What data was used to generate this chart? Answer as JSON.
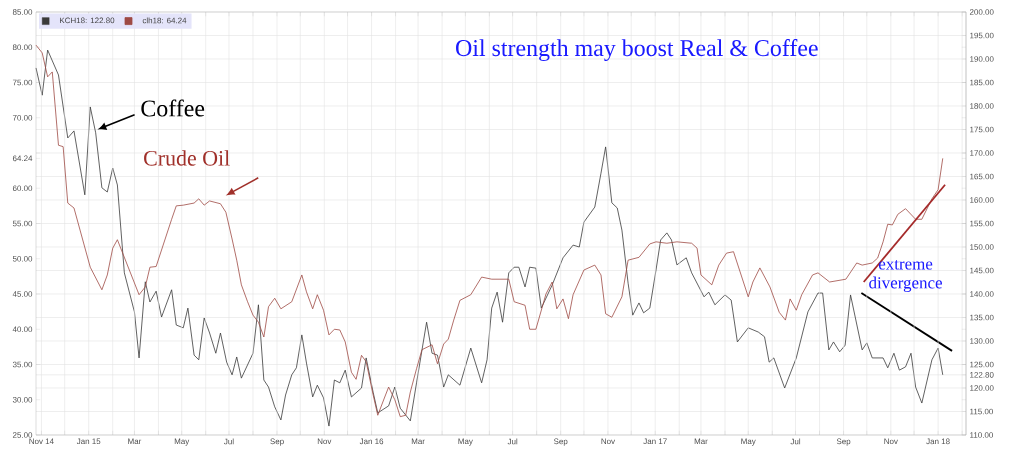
{
  "chart_data": {
    "type": "line",
    "title": "Oil strength may boost Real & Coffee",
    "annotations": [
      "Coffee",
      "Crude Oil",
      "extreme divergence"
    ],
    "xlim": [
      "2014-10-25",
      "2018-02-06"
    ],
    "xticks": [
      {
        "value": "2014-11-01",
        "label": "Nov 14"
      },
      {
        "value": "2014-12-01",
        "label": null
      },
      {
        "value": "2015-01-01",
        "label": "Jan 15"
      },
      {
        "value": "2015-02-01",
        "label": null
      },
      {
        "value": "2015-03-01",
        "label": "Mar"
      },
      {
        "value": "2015-04-01",
        "label": null
      },
      {
        "value": "2015-05-01",
        "label": "May"
      },
      {
        "value": "2015-06-01",
        "label": null
      },
      {
        "value": "2015-07-01",
        "label": "Jul"
      },
      {
        "value": "2015-08-01",
        "label": null
      },
      {
        "value": "2015-09-01",
        "label": "Sep"
      },
      {
        "value": "2015-10-01",
        "label": null
      },
      {
        "value": "2015-11-01",
        "label": "Nov"
      },
      {
        "value": "2015-12-01",
        "label": null
      },
      {
        "value": "2016-01-01",
        "label": "Jan 16"
      },
      {
        "value": "2016-02-01",
        "label": null
      },
      {
        "value": "2016-03-01",
        "label": "Mar"
      },
      {
        "value": "2016-04-01",
        "label": null
      },
      {
        "value": "2016-05-01",
        "label": "May"
      },
      {
        "value": "2016-06-01",
        "label": null
      },
      {
        "value": "2016-07-01",
        "label": "Jul"
      },
      {
        "value": "2016-08-01",
        "label": null
      },
      {
        "value": "2016-09-01",
        "label": "Sep"
      },
      {
        "value": "2016-10-01",
        "label": null
      },
      {
        "value": "2016-11-01",
        "label": "Nov"
      },
      {
        "value": "2016-12-01",
        "label": null
      },
      {
        "value": "2017-01-01",
        "label": "Jan 17"
      },
      {
        "value": "2017-02-01",
        "label": null
      },
      {
        "value": "2017-03-01",
        "label": "Mar"
      },
      {
        "value": "2017-04-01",
        "label": null
      },
      {
        "value": "2017-05-01",
        "label": "May"
      },
      {
        "value": "2017-06-01",
        "label": null
      },
      {
        "value": "2017-07-01",
        "label": "Jul"
      },
      {
        "value": "2017-08-01",
        "label": null
      },
      {
        "value": "2017-09-01",
        "label": "Sep"
      },
      {
        "value": "2017-10-01",
        "label": null
      },
      {
        "value": "2017-11-01",
        "label": "Nov"
      },
      {
        "value": "2017-12-01",
        "label": null
      },
      {
        "value": "2018-01-01",
        "label": "Jan 18"
      },
      {
        "value": "2018-02-01",
        "label": null
      }
    ],
    "ylim": [
      25,
      85
    ],
    "yticks": [
      {
        "value": 25,
        "label": "25.00"
      },
      {
        "value": 30,
        "label": "30.00"
      },
      {
        "value": 35,
        "label": "35.00"
      },
      {
        "value": 40,
        "label": "40.00"
      },
      {
        "value": 45,
        "label": "45.00"
      },
      {
        "value": 50,
        "label": "50.00"
      },
      {
        "value": 55,
        "label": "55.00"
      },
      {
        "value": 60,
        "label": "60.00"
      },
      {
        "value": 64.24,
        "label": "64.24"
      },
      {
        "value": 65,
        "label": null
      },
      {
        "value": 70,
        "label": "70.00"
      },
      {
        "value": 75,
        "label": "75.00"
      },
      {
        "value": 80,
        "label": "80.00"
      },
      {
        "value": 85,
        "label": "85.00"
      }
    ],
    "y2lim": [
      110,
      200
    ],
    "y2ticks": [
      {
        "value": 110,
        "label": "110.00"
      },
      {
        "value": 115,
        "label": "115.00"
      },
      {
        "value": 120,
        "label": "120.00"
      },
      {
        "value": 122.8,
        "label": "122.80"
      },
      {
        "value": 125,
        "label": "125.00"
      },
      {
        "value": 130,
        "label": "130.00"
      },
      {
        "value": 135,
        "label": "135.00"
      },
      {
        "value": 140,
        "label": "140.00"
      },
      {
        "value": 145,
        "label": "145.00"
      },
      {
        "value": 150,
        "label": "150.00"
      },
      {
        "value": 155,
        "label": "155.00"
      },
      {
        "value": 160,
        "label": "160.00"
      },
      {
        "value": 165,
        "label": "165.00"
      },
      {
        "value": 170,
        "label": "170.00"
      },
      {
        "value": 175,
        "label": "175.00"
      },
      {
        "value": 180,
        "label": "180.00"
      },
      {
        "value": 185,
        "label": "185.00"
      },
      {
        "value": 190,
        "label": "190.00"
      },
      {
        "value": 195,
        "label": "195.00"
      },
      {
        "value": 200,
        "label": "200.00"
      }
    ],
    "grid": true,
    "legend": "top left",
    "marker": "none",
    "series": [
      {
        "name": "KCH18: 122.80",
        "color": "#3a3a3a",
        "axis": "y2",
        "x": [
          "2014-10-25",
          "2014-11-02",
          "2014-11-09",
          "2014-11-23",
          "2014-12-05",
          "2014-12-13",
          "2014-12-27",
          "2015-01-03",
          "2015-01-10",
          "2015-01-18",
          "2015-01-25",
          "2015-02-01",
          "2015-02-07",
          "2015-02-16",
          "2015-03-01",
          "2015-03-07",
          "2015-03-15",
          "2015-03-21",
          "2015-03-29",
          "2015-04-05",
          "2015-04-18",
          "2015-04-24",
          "2015-05-03",
          "2015-05-09",
          "2015-05-17",
          "2015-05-23",
          "2015-05-30",
          "2015-06-06",
          "2015-06-14",
          "2015-06-20",
          "2015-06-28",
          "2015-07-05",
          "2015-07-11",
          "2015-07-17",
          "2015-08-01",
          "2015-08-08",
          "2015-08-15",
          "2015-08-21",
          "2015-08-29",
          "2015-09-06",
          "2015-09-12",
          "2015-09-20",
          "2015-09-26",
          "2015-10-03",
          "2015-10-09",
          "2015-10-17",
          "2015-10-23",
          "2015-10-31",
          "2015-11-07",
          "2015-11-14",
          "2015-11-21",
          "2015-11-28",
          "2015-12-06",
          "2015-12-19",
          "2015-12-25",
          "2016-01-03",
          "2016-01-09",
          "2016-01-23",
          "2016-01-31",
          "2016-02-07",
          "2016-02-20",
          "2016-02-28",
          "2016-03-12",
          "2016-03-19",
          "2016-03-26",
          "2016-04-03",
          "2016-04-09",
          "2016-04-24",
          "2016-05-08",
          "2016-05-22",
          "2016-05-29",
          "2016-06-04",
          "2016-06-11",
          "2016-06-18",
          "2016-06-26",
          "2016-07-03",
          "2016-07-09",
          "2016-07-17",
          "2016-07-23",
          "2016-07-31",
          "2016-08-07",
          "2016-08-21",
          "2016-09-04",
          "2016-09-17",
          "2016-09-25",
          "2016-10-01",
          "2016-10-15",
          "2016-10-23",
          "2016-10-29",
          "2016-11-06",
          "2016-11-13",
          "2016-11-19",
          "2016-11-27",
          "2016-12-03",
          "2016-12-11",
          "2016-12-17",
          "2016-12-25",
          "2017-01-02",
          "2017-01-08",
          "2017-01-16",
          "2017-01-22",
          "2017-01-29",
          "2017-02-10",
          "2017-02-17",
          "2017-03-05",
          "2017-03-11",
          "2017-03-19",
          "2017-04-01",
          "2017-04-09",
          "2017-04-17",
          "2017-05-01",
          "2017-05-14",
          "2017-05-22",
          "2017-05-28",
          "2017-06-03",
          "2017-06-17",
          "2017-07-02",
          "2017-07-17",
          "2017-07-30",
          "2017-08-05",
          "2017-08-13",
          "2017-08-19",
          "2017-08-27",
          "2017-09-03",
          "2017-09-10",
          "2017-09-25",
          "2017-10-01",
          "2017-10-08",
          "2017-10-22",
          "2017-10-28",
          "2017-11-05",
          "2017-11-12",
          "2017-11-20",
          "2017-11-27",
          "2017-12-03",
          "2017-12-11",
          "2017-12-24",
          "2018-01-01",
          "2018-01-07"
        ],
        "values": [
          188.1,
          182.3,
          191.9,
          186.6,
          173.2,
          174.7,
          161.1,
          179.8,
          174.3,
          162.6,
          161.7,
          166.8,
          163.2,
          144.5,
          136.2,
          126.4,
          142.6,
          138.3,
          140.6,
          135.1,
          140.9,
          133.4,
          132.8,
          137.0,
          127.0,
          126.0,
          134.9,
          131.7,
          127.4,
          131.7,
          125.5,
          122.8,
          126.6,
          122.1,
          127.4,
          137.7,
          121.7,
          120.2,
          116.0,
          113.2,
          118.5,
          122.8,
          124.3,
          131.3,
          125.3,
          118.1,
          120.6,
          117.9,
          111.9,
          121.7,
          121.1,
          123.8,
          118.1,
          120.0,
          126.4,
          119.1,
          114.7,
          116.2,
          120.2,
          115.7,
          113.0,
          121.1,
          134.0,
          127.4,
          127.0,
          120.2,
          122.8,
          120.6,
          128.5,
          121.1,
          126.0,
          137.0,
          140.4,
          134.0,
          144.5,
          145.7,
          145.7,
          141.5,
          145.7,
          145.5,
          137.0,
          141.9,
          147.7,
          150.4,
          150.0,
          155.3,
          158.5,
          165.7,
          171.3,
          159.4,
          158.3,
          153.6,
          142.3,
          135.5,
          138.1,
          136.0,
          137.0,
          145.1,
          151.5,
          153.0,
          151.5,
          146.2,
          147.7,
          144.5,
          139.4,
          140.4,
          137.7,
          139.8,
          138.7,
          129.8,
          132.8,
          131.9,
          130.9,
          125.5,
          126.4,
          120.0,
          126.4,
          136.2,
          140.2,
          140.2,
          128.1,
          129.8,
          127.7,
          129.1,
          139.8,
          128.1,
          129.6,
          126.4,
          126.4,
          124.3,
          127.4,
          123.8,
          124.5,
          127.4,
          120.2,
          116.8,
          126.0,
          128.5,
          122.8
        ]
      },
      {
        "name": "clh18: 64.24",
        "color": "#9e4a44",
        "axis": "y",
        "x": [
          "2014-10-25",
          "2014-11-02",
          "2014-11-09",
          "2014-11-15",
          "2014-11-23",
          "2014-11-29",
          "2014-12-05",
          "2014-12-13",
          "2015-01-03",
          "2015-01-18",
          "2015-01-25",
          "2015-02-01",
          "2015-02-07",
          "2015-03-07",
          "2015-03-15",
          "2015-03-21",
          "2015-03-29",
          "2015-04-18",
          "2015-04-24",
          "2015-05-03",
          "2015-05-17",
          "2015-05-23",
          "2015-05-30",
          "2015-06-06",
          "2015-06-20",
          "2015-06-27",
          "2015-07-05",
          "2015-07-11",
          "2015-07-17",
          "2015-07-25",
          "2015-08-01",
          "2015-08-08",
          "2015-08-15",
          "2015-08-21",
          "2015-08-29",
          "2015-09-06",
          "2015-09-20",
          "2015-10-03",
          "2015-10-09",
          "2015-10-17",
          "2015-10-23",
          "2015-10-31",
          "2015-11-07",
          "2015-11-14",
          "2015-11-21",
          "2015-11-28",
          "2015-12-06",
          "2015-12-12",
          "2015-12-19",
          "2015-12-25",
          "2016-01-03",
          "2016-01-09",
          "2016-01-17",
          "2016-01-23",
          "2016-01-31",
          "2016-02-07",
          "2016-02-14",
          "2016-02-20",
          "2016-02-28",
          "2016-03-06",
          "2016-03-19",
          "2016-03-26",
          "2016-04-03",
          "2016-04-09",
          "2016-04-16",
          "2016-04-24",
          "2016-05-08",
          "2016-05-22",
          "2016-06-04",
          "2016-06-26",
          "2016-07-03",
          "2016-07-17",
          "2016-07-23",
          "2016-07-31",
          "2016-08-13",
          "2016-08-21",
          "2016-08-27",
          "2016-09-04",
          "2016-09-11",
          "2016-09-17",
          "2016-10-01",
          "2016-10-15",
          "2016-10-23",
          "2016-10-29",
          "2016-11-06",
          "2016-11-19",
          "2016-11-27",
          "2016-12-11",
          "2016-12-25",
          "2017-01-02",
          "2017-01-16",
          "2017-01-29",
          "2017-02-17",
          "2017-02-24",
          "2017-03-01",
          "2017-03-15",
          "2017-03-24",
          "2017-04-03",
          "2017-04-12",
          "2017-05-01",
          "2017-05-07",
          "2017-05-16",
          "2017-05-29",
          "2017-06-10",
          "2017-06-18",
          "2017-06-24",
          "2017-07-02",
          "2017-07-09",
          "2017-07-23",
          "2017-07-30",
          "2017-08-14",
          "2017-09-04",
          "2017-09-18",
          "2017-09-25",
          "2017-10-08",
          "2017-10-15",
          "2017-10-22",
          "2017-10-28",
          "2017-11-03",
          "2017-11-10",
          "2017-11-20",
          "2017-12-03",
          "2017-12-11",
          "2017-12-24",
          "2018-01-01",
          "2018-01-07"
        ],
        "values": [
          80.3,
          79.2,
          75.8,
          76.5,
          66.1,
          65.9,
          57.9,
          57.2,
          48.8,
          45.6,
          47.7,
          51.5,
          52.7,
          44.9,
          46.0,
          48.8,
          48.9,
          55.6,
          57.5,
          57.6,
          57.9,
          58.5,
          57.6,
          58.2,
          57.8,
          56.6,
          52.8,
          49.8,
          46.3,
          43.9,
          42.0,
          41.0,
          38.9,
          43.2,
          44.4,
          42.9,
          43.9,
          47.7,
          45.3,
          42.9,
          44.9,
          42.7,
          39.2,
          40.0,
          39.9,
          38.2,
          33.9,
          32.9,
          36.3,
          35.4,
          30.7,
          27.8,
          30.1,
          31.8,
          30.0,
          27.6,
          27.8,
          31.1,
          34.4,
          37.1,
          37.8,
          35.1,
          37.9,
          38.6,
          41.3,
          44.1,
          44.9,
          47.4,
          47.1,
          47.1,
          43.9,
          43.4,
          40.0,
          40.0,
          45.0,
          46.7,
          42.9,
          44.3,
          41.5,
          44.9,
          48.4,
          49.1,
          47.7,
          42.2,
          41.7,
          44.6,
          49.8,
          50.2,
          52.1,
          52.4,
          52.2,
          52.4,
          52.2,
          51.5,
          47.7,
          46.3,
          49.1,
          50.8,
          51.0,
          44.6,
          46.7,
          48.7,
          46.0,
          42.4,
          41.3,
          44.3,
          42.7,
          44.9,
          47.7,
          48.0,
          46.7,
          47.1,
          49.4,
          49.1,
          49.4,
          50.1,
          52.4,
          54.9,
          54.8,
          56.3,
          57.1,
          55.6,
          55.6,
          58.5,
          59.8,
          64.24
        ]
      },
      {
        "color": "#a52a2a",
        "axis": "y",
        "x": [
          "2017-09-27",
          "2018-01-10"
        ],
        "values": [
          46.7,
          60.5
        ]
      },
      {
        "color": "#000000",
        "axis": "y2",
        "x": [
          "2017-09-24",
          "2018-01-19"
        ],
        "values": [
          140.2,
          127.9
        ]
      }
    ]
  }
}
